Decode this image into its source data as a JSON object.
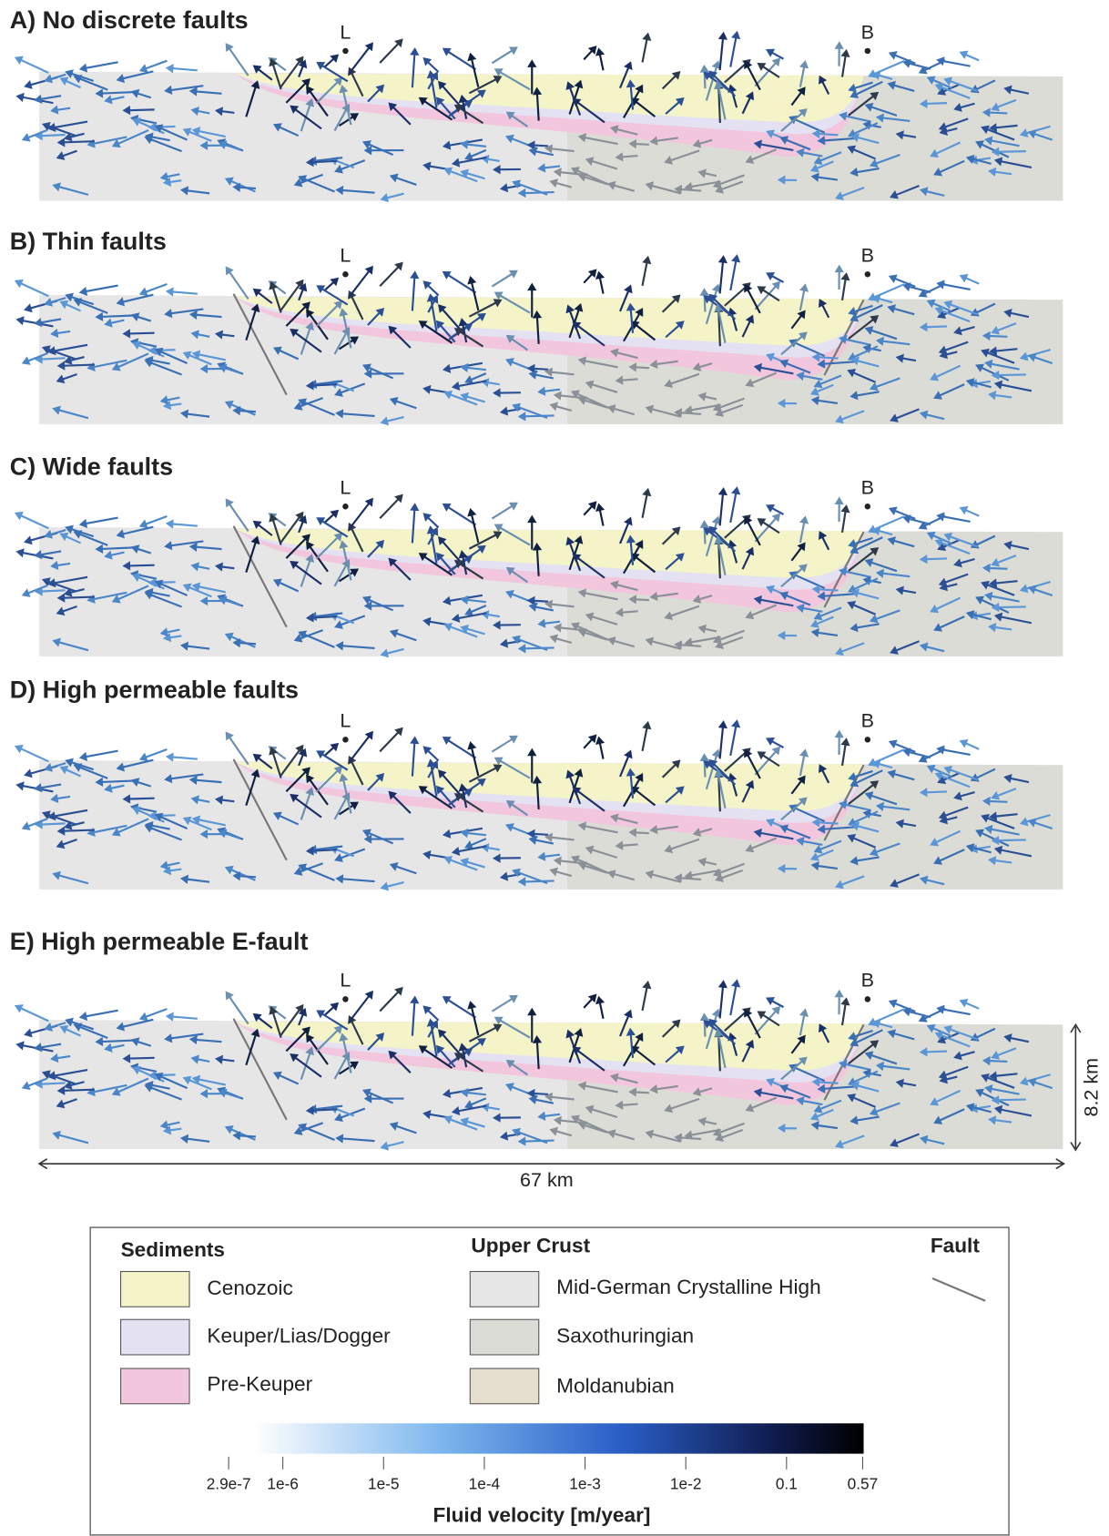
{
  "panels": [
    {
      "title": "A) No discrete faults"
    },
    {
      "title": "B) Thin faults"
    },
    {
      "title": "C) Wide faults"
    },
    {
      "title": "D) High permeable faults"
    },
    {
      "title": "E) High permeable E-fault"
    }
  ],
  "wells": [
    "L",
    "B"
  ],
  "dimensions": {
    "depth": "8.2 km",
    "length": "67 km"
  },
  "legend": {
    "sediments": {
      "heading": "Sediments",
      "items": [
        "Cenozoic",
        "Keuper/Lias/Dogger",
        "Pre-Keuper"
      ]
    },
    "upper_crust": {
      "heading": "Upper Crust",
      "items": [
        "Mid-German Crystalline High",
        "Saxothuringian",
        "Moldanubian"
      ]
    },
    "fault": {
      "heading": "Fault"
    }
  },
  "colorbar": {
    "label": "Fluid velocity [m/year]",
    "ticks": [
      {
        "value": 2.9e-07,
        "label": "2.9e-7"
      },
      {
        "value": 1e-06,
        "label": "1e-6"
      },
      {
        "value": 1e-05,
        "label": "1e-5"
      },
      {
        "value": 0.0001,
        "label": "1e-4"
      },
      {
        "value": 0.001,
        "label": "1e-3"
      },
      {
        "value": 0.01,
        "label": "1e-2"
      },
      0.1,
      0.57
    ]
  }
}
